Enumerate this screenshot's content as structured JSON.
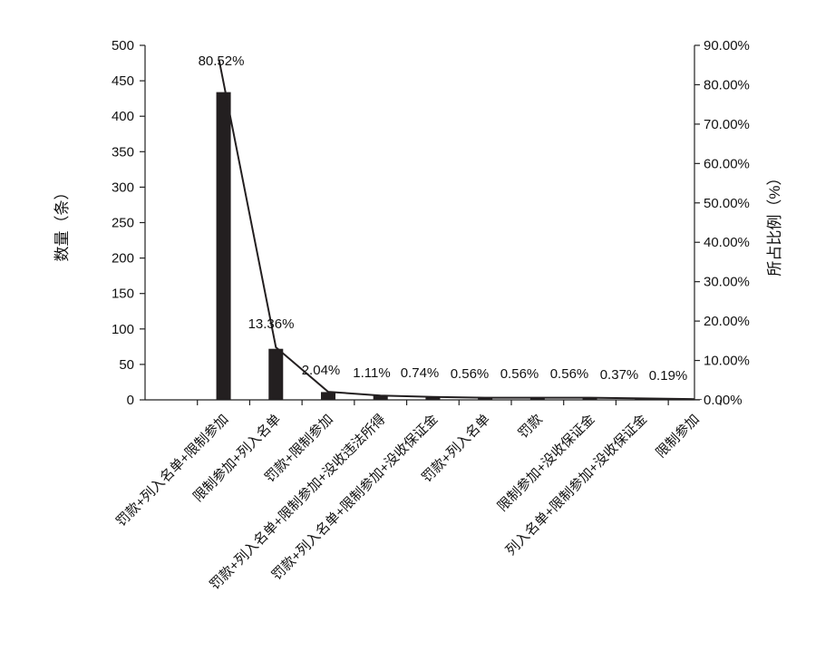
{
  "chart_data": {
    "type": "bar",
    "categories": [
      "罚款+列入名单+限制参加",
      "限制参加+列入名单",
      "罚款+限制参加",
      "罚款+列入名单+限制参加+没收违法所得",
      "罚款+列入名单+限制参加+没收保证金",
      "罚款+列入名单",
      "罚款",
      "限制参加+没收保证金",
      "列入名单+限制参加+没收保证金",
      "限制参加"
    ],
    "series": [
      {
        "values": [
          434,
          72,
          11,
          6,
          4,
          3,
          3,
          3,
          2,
          1
        ]
      },
      {
        "values": [
          80.52,
          13.36,
          2.04,
          1.11,
          0.74,
          0.56,
          0.56,
          0.56,
          0.37,
          0.19
        ]
      }
    ],
    "data_labels": [
      "80.52%",
      "13.36%",
      "2.04%",
      "1.11%",
      "0.74%",
      "0.56%",
      "0.56%",
      "0.56%",
      "0.37%",
      "0.19%"
    ],
    "ylabel": "数量（条）",
    "y2label": "所占比例（%）",
    "ylim": [
      0,
      500
    ],
    "yticks": [
      "0",
      "50",
      "100",
      "150",
      "200",
      "250",
      "300",
      "350",
      "400",
      "450",
      "500"
    ],
    "y2lim": [
      0,
      90
    ],
    "y2ticks": [
      "0.00%",
      "10.00%",
      "20.00%",
      "30.00%",
      "40.00%",
      "50.00%",
      "60.00%",
      "70.00%",
      "80.00%",
      "90.00%"
    ],
    "grid": false,
    "bar_color": "#231f20",
    "line_color": "#231f20"
  }
}
